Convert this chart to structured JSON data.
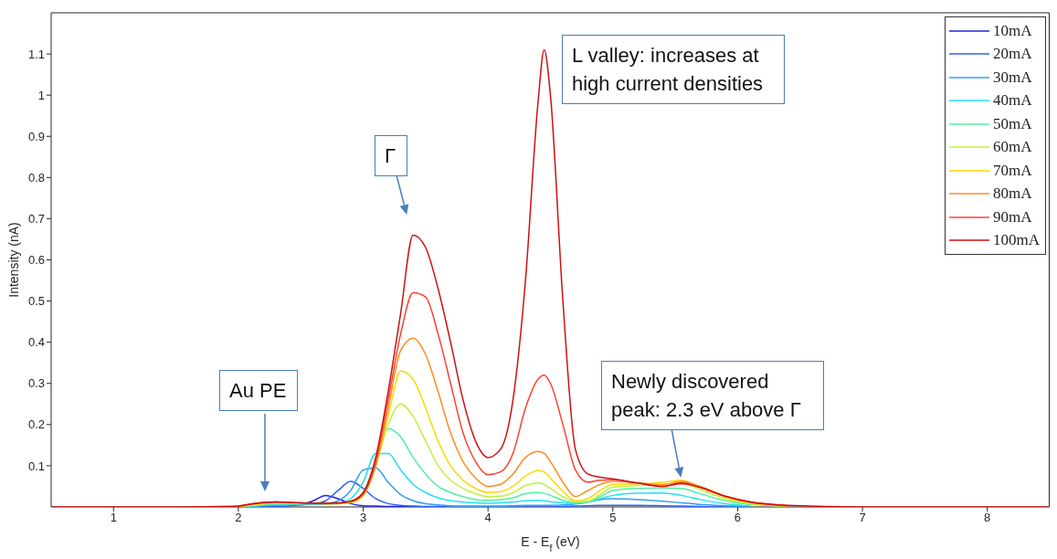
{
  "chart_data": {
    "type": "line",
    "xlabel": "E - E$_{f}$ (eV)",
    "ylabel": "Intensity (nA)",
    "xlim": [
      0.5,
      8.5
    ],
    "xticks": [
      1,
      2,
      3,
      4,
      5,
      6,
      7,
      8
    ],
    "ylim": [
      0,
      1.2
    ],
    "yticks": [
      0.1,
      0.2,
      0.3,
      0.4,
      0.5,
      0.6,
      0.7,
      0.8,
      0.9,
      1,
      1.1
    ],
    "legend": "top right",
    "x": [
      0.5,
      1,
      1.5,
      2,
      2.1,
      2.3,
      2.5,
      2.6,
      2.7,
      2.8,
      2.9,
      3.0,
      3.1,
      3.2,
      3.3,
      3.4,
      3.5,
      3.6,
      3.7,
      3.8,
      3.9,
      4.0,
      4.1,
      4.2,
      4.3,
      4.4,
      4.45,
      4.5,
      4.6,
      4.7,
      4.8,
      4.9,
      5.0,
      5.2,
      5.4,
      5.55,
      5.7,
      5.9,
      6.1,
      6.4,
      7,
      8,
      8.5
    ],
    "series": [
      {
        "name": "10mA",
        "color": "#2020e0",
        "values": [
          null,
          null,
          null,
          null,
          null,
          null,
          0.005,
          0.015,
          0.028,
          0.02,
          0.008,
          0.003,
          0.002,
          0.001,
          0.001,
          0.001,
          0,
          null,
          null,
          null,
          null,
          null,
          null,
          null,
          null,
          null,
          null,
          null,
          null,
          null,
          null,
          null,
          null,
          null,
          null,
          null,
          null,
          null,
          null,
          null,
          null,
          null,
          null
        ]
      },
      {
        "name": "20mA",
        "color": "#3060ff",
        "values": [
          null,
          null,
          null,
          null,
          0,
          0.001,
          0.005,
          0.007,
          0.015,
          0.04,
          0.062,
          0.045,
          0.02,
          0.008,
          0.004,
          0.002,
          0.001,
          0.001,
          0,
          0,
          0,
          0,
          0,
          0,
          0,
          0,
          0,
          0,
          0.001,
          0.002,
          0.003,
          0.004,
          0.004,
          0.004,
          0.003,
          0.002,
          0.001,
          0,
          0,
          null,
          null,
          null,
          null
        ]
      },
      {
        "name": "30mA",
        "color": "#30a0f0",
        "values": [
          null,
          null,
          null,
          0,
          0.001,
          0.004,
          0.006,
          0.006,
          0.008,
          0.015,
          0.04,
          0.09,
          0.095,
          0.06,
          0.03,
          0.015,
          0.008,
          0.005,
          0.003,
          0.002,
          0.002,
          0.002,
          0.002,
          0.003,
          0.004,
          0.004,
          0.004,
          0.004,
          0.005,
          0.007,
          0.012,
          0.018,
          0.02,
          0.018,
          0.014,
          0.01,
          0.006,
          0.003,
          0.001,
          null,
          null,
          null,
          null
        ]
      },
      {
        "name": "40mA",
        "color": "#20e0f0",
        "values": [
          null,
          null,
          null,
          0,
          0.002,
          0.006,
          0.007,
          0.007,
          0.007,
          0.009,
          0.02,
          0.06,
          0.13,
          0.13,
          0.09,
          0.055,
          0.035,
          0.022,
          0.015,
          0.012,
          0.01,
          0.009,
          0.01,
          0.012,
          0.015,
          0.016,
          0.015,
          0.013,
          0.01,
          0.008,
          0.012,
          0.02,
          0.028,
          0.033,
          0.034,
          0.028,
          0.018,
          0.008,
          0.003,
          null,
          null,
          null,
          null
        ]
      },
      {
        "name": "50mA",
        "color": "#50f0a0",
        "values": [
          null,
          null,
          null,
          0,
          0.003,
          0.008,
          0.008,
          0.008,
          0.008,
          0.008,
          0.012,
          0.035,
          0.11,
          0.19,
          0.17,
          0.12,
          0.08,
          0.05,
          0.035,
          0.025,
          0.018,
          0.016,
          0.017,
          0.022,
          0.032,
          0.035,
          0.033,
          0.028,
          0.016,
          0.01,
          0.012,
          0.025,
          0.04,
          0.045,
          0.046,
          0.045,
          0.032,
          0.015,
          0.006,
          0.002,
          null,
          null,
          null
        ]
      },
      {
        "name": "60mA",
        "color": "#c0f040",
        "values": [
          null,
          null,
          null,
          0.001,
          0.004,
          0.009,
          0.009,
          0.008,
          0.008,
          0.008,
          0.011,
          0.03,
          0.1,
          0.2,
          0.25,
          0.22,
          0.16,
          0.1,
          0.065,
          0.045,
          0.032,
          0.025,
          0.026,
          0.035,
          0.052,
          0.058,
          0.055,
          0.045,
          0.025,
          0.013,
          0.014,
          0.03,
          0.048,
          0.052,
          0.055,
          0.058,
          0.042,
          0.02,
          0.008,
          0.002,
          null,
          null,
          null
        ]
      },
      {
        "name": "70mA",
        "color": "#ffd700",
        "values": [
          null,
          null,
          null,
          0.001,
          0.005,
          0.01,
          0.01,
          null,
          0.008,
          0.008,
          0.011,
          0.028,
          0.1,
          0.22,
          0.33,
          0.31,
          0.24,
          0.16,
          0.1,
          0.065,
          0.045,
          0.035,
          0.037,
          0.05,
          0.075,
          0.088,
          0.085,
          0.07,
          0.038,
          0.015,
          0.02,
          0.04,
          0.055,
          0.056,
          0.06,
          0.065,
          0.048,
          0.024,
          0.01,
          0.003,
          null,
          null,
          null
        ]
      },
      {
        "name": "80mA",
        "color": "#ff8c20",
        "values": [
          null,
          null,
          null,
          0.002,
          0.006,
          0.011,
          0.01,
          0.009,
          0.008,
          0.009,
          0.012,
          0.03,
          0.1,
          0.24,
          0.38,
          0.41,
          0.37,
          0.28,
          0.18,
          0.11,
          0.07,
          0.05,
          0.055,
          0.08,
          0.12,
          0.135,
          0.13,
          0.11,
          0.06,
          0.025,
          0.04,
          0.055,
          0.062,
          0.058,
          0.054,
          0.062,
          0.05,
          0.026,
          0.011,
          0.003,
          null,
          null,
          null
        ]
      },
      {
        "name": "90mA",
        "color": "#ff4030",
        "values": [
          null,
          null,
          null,
          0.002,
          0.007,
          0.012,
          0.01,
          0.009,
          0.009,
          0.009,
          0.013,
          0.032,
          0.11,
          0.26,
          0.42,
          0.52,
          0.51,
          0.42,
          0.3,
          0.18,
          0.11,
          0.078,
          0.085,
          0.13,
          0.24,
          0.31,
          0.32,
          0.3,
          0.2,
          0.09,
          0.06,
          0.065,
          0.066,
          0.058,
          0.05,
          0.056,
          0.048,
          0.026,
          0.012,
          0.003,
          null,
          null,
          null
        ]
      },
      {
        "name": "100mA",
        "color": "#d01010",
        "values": [
          0,
          0,
          0,
          0.002,
          0.007,
          0.012,
          0.01,
          0.009,
          0.009,
          0.01,
          0.014,
          0.035,
          0.12,
          0.28,
          0.47,
          0.66,
          0.63,
          0.53,
          0.4,
          0.26,
          0.16,
          0.12,
          0.14,
          0.26,
          0.55,
          0.98,
          1.11,
          1.0,
          0.5,
          0.14,
          0.08,
          0.072,
          0.068,
          0.058,
          0.05,
          0.058,
          0.047,
          0.026,
          0.012,
          0.004,
          0,
          0,
          0
        ]
      }
    ],
    "annotations": [
      "Au PE",
      "Γ",
      "L valley: increases at high current densities",
      {
        "text": "Newly discovered peak: 2.3 eV above Γ",
        "x": 5.55,
        "y": 0.065
      }
    ]
  }
}
